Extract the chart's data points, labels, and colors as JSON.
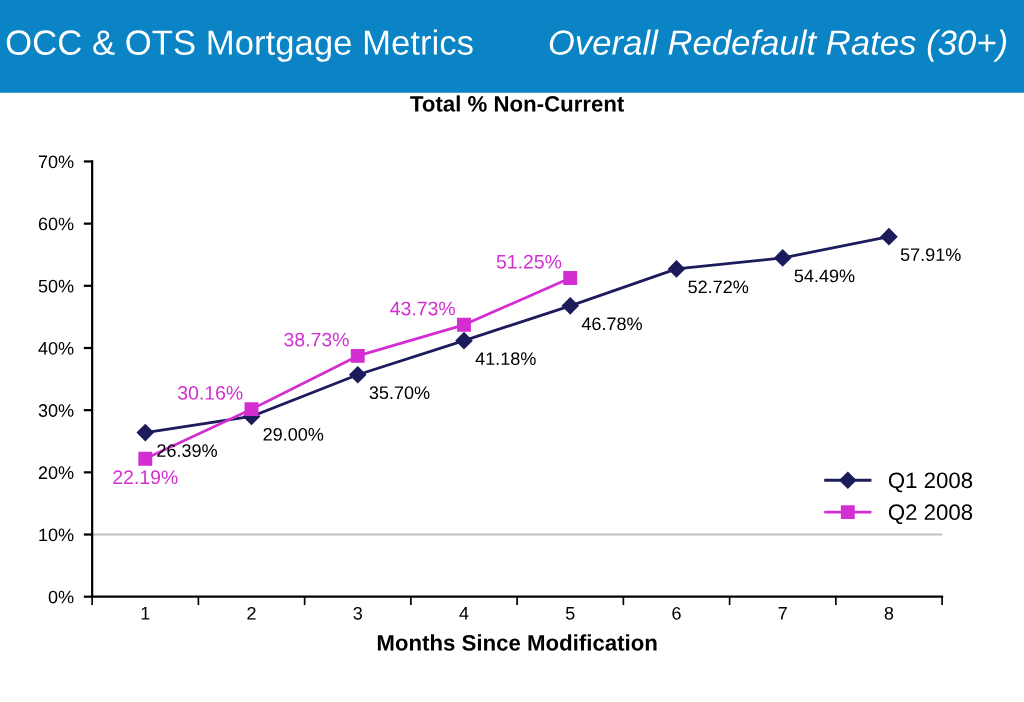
{
  "chart_data": {
    "type": "line",
    "title": "Total % Non-Current",
    "xlabel": "Months Since Modification",
    "annotations": [
      "OCC & OTS Mortgage Metrics",
      "Overall Redefault Rates (30+)"
    ],
    "categories": [
      "1",
      "2",
      "3",
      "4",
      "5",
      "6",
      "7",
      "8"
    ],
    "series": [
      {
        "name": "Q1 2008",
        "color": "#1c1c5c",
        "marker": "diamond",
        "values": [
          26.39,
          29.0,
          35.7,
          41.18,
          46.78,
          52.72,
          54.49,
          57.91
        ],
        "value_labels": [
          "26.39%",
          "29.00%",
          "35.70%",
          "41.18%",
          "46.78%",
          "52.72%",
          "54.49%",
          "57.91%"
        ]
      },
      {
        "name": "Q2 2008",
        "color": "#d22ed2",
        "marker": "square",
        "values": [
          22.19,
          30.16,
          38.73,
          43.73,
          51.25,
          null,
          null,
          null
        ],
        "value_labels": [
          "22.19%",
          "30.16%",
          "38.73%",
          "43.73%",
          "51.25%",
          null,
          null,
          null
        ]
      }
    ],
    "ylim": [
      0,
      70
    ],
    "yticks": [
      {
        "value": 0,
        "label": "0%"
      },
      {
        "value": 10,
        "label": "10%"
      },
      {
        "value": 20,
        "label": "20%"
      },
      {
        "value": 30,
        "label": "30%"
      },
      {
        "value": 40,
        "label": "40%"
      },
      {
        "value": 50,
        "label": "50%"
      },
      {
        "value": 60,
        "label": "60%"
      },
      {
        "value": 70,
        "label": "70%"
      }
    ],
    "ref_lines": [
      {
        "axis": "y",
        "value": 10,
        "color": "#c0c0c0"
      }
    ],
    "grid": false,
    "legend": "bottom right",
    "line_style": "solid"
  }
}
